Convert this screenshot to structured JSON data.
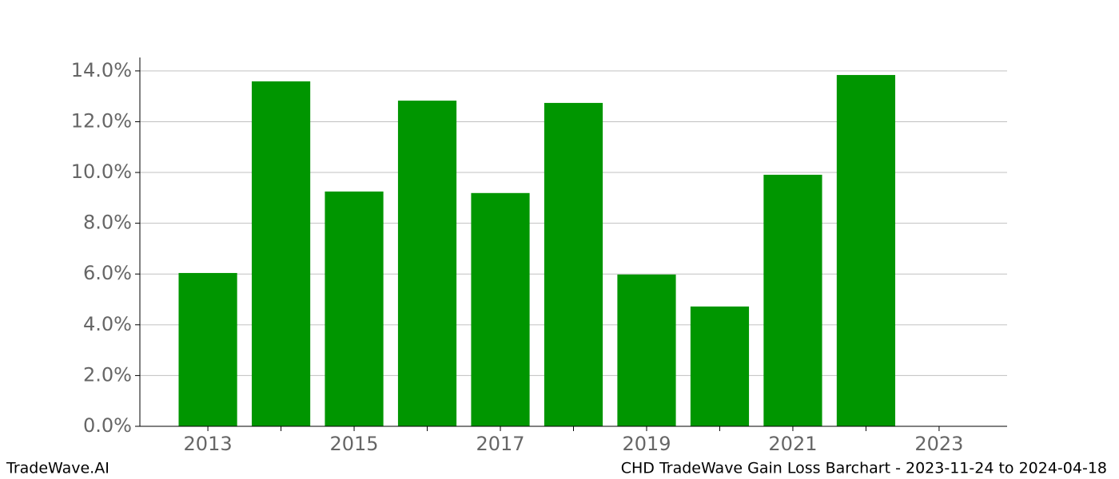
{
  "chart_data": {
    "type": "bar",
    "title": "CHD TradeWave Gain Loss Barchart - 2023-11-24 to 2024-04-18",
    "brand": "TradeWave.AI",
    "x": [
      2013,
      2014,
      2015,
      2016,
      2017,
      2018,
      2019,
      2020,
      2021,
      2022
    ],
    "values": [
      6.04,
      13.59,
      9.25,
      12.83,
      9.19,
      12.74,
      5.98,
      4.72,
      9.91,
      13.84
    ],
    "color": "#009600",
    "xlim": [
      2012.07,
      2023.93
    ],
    "xticks": [
      2013,
      2015,
      2017,
      2019,
      2021,
      2023
    ],
    "xticks_minor": [
      2014,
      2016,
      2018,
      2020,
      2022
    ],
    "ylim": [
      0,
      14.53
    ],
    "yticks": [
      {
        "value": 0,
        "label": "0.0%"
      },
      {
        "value": 2,
        "label": "2.0%"
      },
      {
        "value": 4,
        "label": "4.0%"
      },
      {
        "value": 6,
        "label": "6.0%"
      },
      {
        "value": 8,
        "label": "8.0%"
      },
      {
        "value": 10,
        "label": "10.0%"
      },
      {
        "value": 12,
        "label": "12.0%"
      },
      {
        "value": 14,
        "label": "14.0%"
      }
    ],
    "grid": true
  }
}
